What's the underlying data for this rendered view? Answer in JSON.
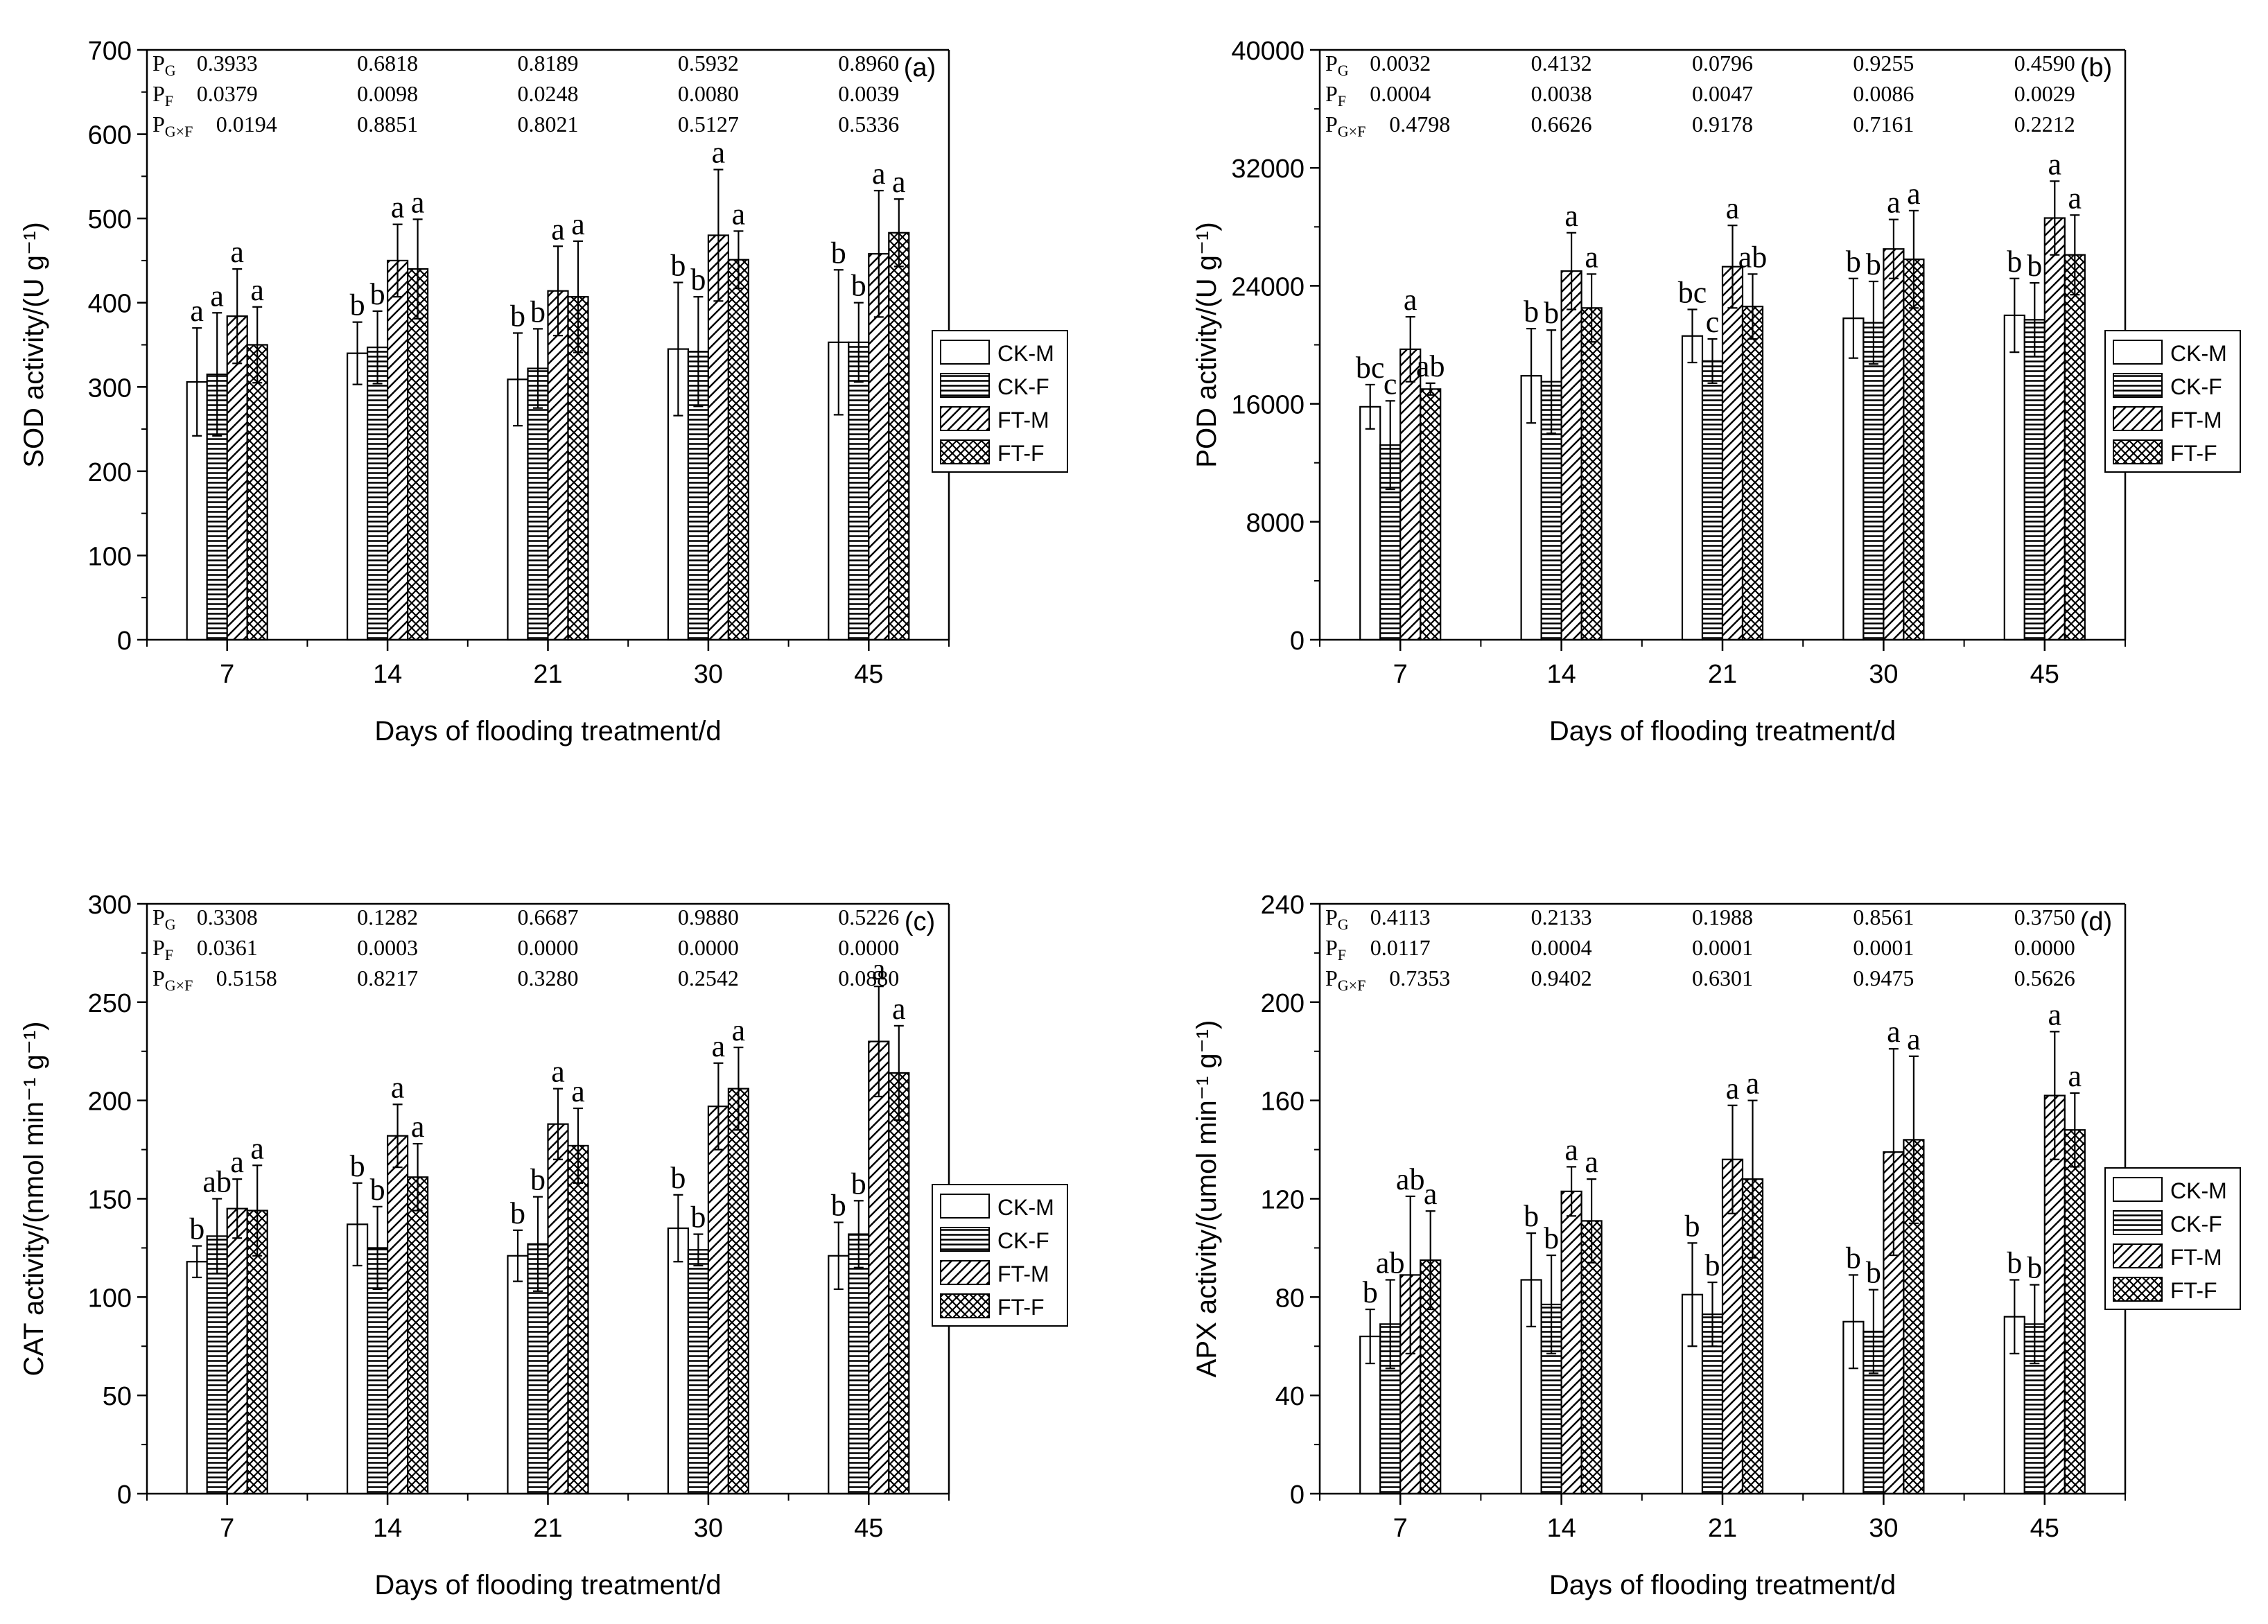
{
  "figure": {
    "x_label": "Days of flooding treatment/d",
    "categories": [
      "7",
      "14",
      "21",
      "30",
      "45"
    ],
    "legend": [
      "CK-M",
      "CK-F",
      "FT-M",
      "FT-F"
    ],
    "stat_labels": [
      "P_G",
      "P_F",
      "P_G×F"
    ]
  },
  "chart_data": [
    {
      "type": "bar",
      "panel_label": "(a)",
      "ylabel": "SOD activity/(U g⁻¹)",
      "ylim": [
        0,
        700
      ],
      "yticks": [
        0,
        100,
        200,
        300,
        400,
        500,
        600,
        700
      ],
      "categories": [
        "7",
        "14",
        "21",
        "30",
        "45"
      ],
      "series": [
        {
          "name": "CK-M",
          "values": [
            306,
            340,
            309,
            345,
            353
          ],
          "errors": [
            64,
            37,
            55,
            79,
            86
          ],
          "letters": [
            "a",
            "b",
            "b",
            "b",
            "b"
          ]
        },
        {
          "name": "CK-F",
          "values": [
            315,
            347,
            322,
            342,
            353
          ],
          "errors": [
            73,
            43,
            47,
            65,
            47
          ],
          "letters": [
            "a",
            "b",
            "b",
            "b",
            "b"
          ]
        },
        {
          "name": "FT-M",
          "values": [
            384,
            450,
            414,
            480,
            458
          ],
          "errors": [
            56,
            43,
            53,
            78,
            75
          ],
          "letters": [
            "a",
            "a",
            "a",
            "a",
            "a"
          ]
        },
        {
          "name": "FT-F",
          "values": [
            350,
            440,
            407,
            451,
            483
          ],
          "errors": [
            45,
            59,
            66,
            34,
            40
          ],
          "letters": [
            "a",
            "a",
            "a",
            "a",
            "a"
          ]
        }
      ],
      "stats": {
        "P_G": [
          "0.3933",
          "0.6818",
          "0.8189",
          "0.5932",
          "0.8960"
        ],
        "P_F": [
          "0.0379",
          "0.0098",
          "0.0248",
          "0.0080",
          "0.0039"
        ],
        "P_GxF": [
          "0.0194",
          "0.8851",
          "0.8021",
          "0.5127",
          "0.5336"
        ]
      },
      "xlabel": "Days of flooding treatment/d"
    },
    {
      "type": "bar",
      "panel_label": "(b)",
      "ylabel": "POD activity/(U g⁻¹)",
      "ylim": [
        0,
        40000
      ],
      "yticks": [
        0,
        8000,
        16000,
        24000,
        32000,
        40000
      ],
      "categories": [
        "7",
        "14",
        "21",
        "30",
        "45"
      ],
      "series": [
        {
          "name": "CK-M",
          "values": [
            15800,
            17900,
            20600,
            21800,
            22000
          ],
          "errors": [
            1500,
            3200,
            1800,
            2700,
            2500
          ],
          "letters": [
            "bc",
            "b",
            "bc",
            "b",
            "b"
          ]
        },
        {
          "name": "CK-F",
          "values": [
            13200,
            17500,
            18900,
            21500,
            21700
          ],
          "errors": [
            3000,
            3500,
            1500,
            2800,
            2500
          ],
          "letters": [
            "c",
            "b",
            "c",
            "b",
            "b"
          ]
        },
        {
          "name": "FT-M",
          "values": [
            19700,
            25000,
            25300,
            26500,
            28600
          ],
          "errors": [
            2200,
            2600,
            2800,
            2000,
            2500
          ],
          "letters": [
            "a",
            "a",
            "a",
            "a",
            "a"
          ]
        },
        {
          "name": "FT-F",
          "values": [
            17000,
            22500,
            22600,
            25800,
            26100
          ],
          "errors": [
            400,
            2300,
            2200,
            3300,
            2700
          ],
          "letters": [
            "ab",
            "a",
            "ab",
            "a",
            "a"
          ]
        }
      ],
      "stats": {
        "P_G": [
          "0.0032",
          "0.4132",
          "0.0796",
          "0.9255",
          "0.4590"
        ],
        "P_F": [
          "0.0004",
          "0.0038",
          "0.0047",
          "0.0086",
          "0.0029"
        ],
        "P_GxF": [
          "0.4798",
          "0.6626",
          "0.9178",
          "0.7161",
          "0.2212"
        ]
      },
      "xlabel": "Days of flooding treatment/d"
    },
    {
      "type": "bar",
      "panel_label": "(c)",
      "ylabel": "CAT activity/(nmol min⁻¹ g⁻¹)",
      "ylim": [
        0,
        300
      ],
      "yticks": [
        0,
        50,
        100,
        150,
        200,
        250,
        300
      ],
      "categories": [
        "7",
        "14",
        "21",
        "30",
        "45"
      ],
      "series": [
        {
          "name": "CK-M",
          "values": [
            118,
            137,
            121,
            135,
            121
          ],
          "errors": [
            8,
            21,
            13,
            17,
            17
          ],
          "letters": [
            "b",
            "b",
            "b",
            "b",
            "b"
          ]
        },
        {
          "name": "CK-F",
          "values": [
            131,
            125,
            127,
            124,
            132
          ],
          "errors": [
            19,
            21,
            24,
            8,
            17
          ],
          "letters": [
            "ab",
            "b",
            "b",
            "b",
            "b"
          ]
        },
        {
          "name": "FT-M",
          "values": [
            145,
            182,
            188,
            197,
            230
          ],
          "errors": [
            15,
            16,
            18,
            22,
            28
          ],
          "letters": [
            "a",
            "a",
            "a",
            "a",
            "a"
          ]
        },
        {
          "name": "FT-F",
          "values": [
            144,
            161,
            177,
            206,
            214
          ],
          "errors": [
            23,
            17,
            19,
            21,
            24
          ],
          "letters": [
            "a",
            "a",
            "a",
            "a",
            "a"
          ]
        }
      ],
      "stats": {
        "P_G": [
          "0.3308",
          "0.1282",
          "0.6687",
          "0.9880",
          "0.5226"
        ],
        "P_F": [
          "0.0361",
          "0.0003",
          "0.0000",
          "0.0000",
          "0.0000"
        ],
        "P_GxF": [
          "0.5158",
          "0.8217",
          "0.3280",
          "0.2542",
          "0.0880"
        ]
      },
      "xlabel": "Days of flooding treatment/d"
    },
    {
      "type": "bar",
      "panel_label": "(d)",
      "ylabel": "APX activity/(umol min⁻¹ g⁻¹)",
      "ylim": [
        0,
        240
      ],
      "yticks": [
        0,
        40,
        80,
        120,
        160,
        200,
        240
      ],
      "categories": [
        "7",
        "14",
        "21",
        "30",
        "45"
      ],
      "series": [
        {
          "name": "CK-M",
          "values": [
            64,
            87,
            81,
            70,
            72
          ],
          "errors": [
            11,
            19,
            21,
            19,
            15
          ],
          "letters": [
            "b",
            "b",
            "b",
            "b",
            "b"
          ]
        },
        {
          "name": "CK-F",
          "values": [
            69,
            77,
            73,
            66,
            69
          ],
          "errors": [
            18,
            20,
            13,
            17,
            16
          ],
          "letters": [
            "ab",
            "b",
            "b",
            "b",
            "b"
          ]
        },
        {
          "name": "FT-M",
          "values": [
            89,
            123,
            136,
            139,
            162
          ],
          "errors": [
            32,
            10,
            22,
            42,
            26
          ],
          "letters": [
            "ab",
            "a",
            "a",
            "a",
            "a"
          ]
        },
        {
          "name": "FT-F",
          "values": [
            95,
            111,
            128,
            144,
            148
          ],
          "errors": [
            20,
            17,
            32,
            34,
            15
          ],
          "letters": [
            "a",
            "a",
            "a",
            "a",
            "a"
          ]
        }
      ],
      "stats": {
        "P_G": [
          "0.4113",
          "0.2133",
          "0.1988",
          "0.8561",
          "0.3750"
        ],
        "P_F": [
          "0.0117",
          "0.0004",
          "0.0001",
          "0.0001",
          "0.0000"
        ],
        "P_GxF": [
          "0.7353",
          "0.9402",
          "0.6301",
          "0.9475",
          "0.5626"
        ]
      },
      "xlabel": "Days of flooding treatment/d"
    }
  ]
}
